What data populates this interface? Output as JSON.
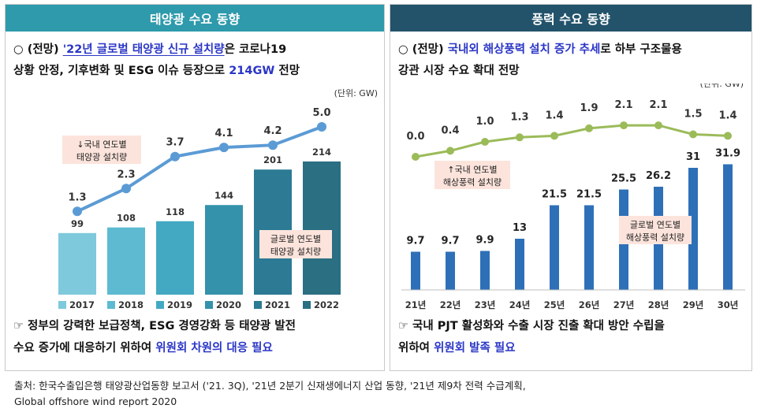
{
  "left": {
    "title": "태양광 수요 동향",
    "headline": {
      "l1_a": "○ (전망) ",
      "l1_b": "'22년 글로벌 태양광 신규 설치량",
      "l1_c": "은 코로나19",
      "l2_a": "상황 안정, 기후변화 및 ESG 이슈 등장으로 ",
      "l2_b": "214GW",
      "l2_c": " 전망"
    },
    "unit": "(단위: GW)",
    "note": {
      "l1": "☞ 정부의 강력한 보급정책, ESG 경영강화 등 태양광 발전",
      "l2_a": "수요 증가에 대응하기 위하여 ",
      "l2_b": "위원회 차원의 대응 필요"
    }
  },
  "right": {
    "title": "풍력 수요 동향",
    "headline": {
      "l1_a": "○ (전망) ",
      "l1_b": "국내외 해상풍력 설치 증가 추세",
      "l1_c": "로 하부 구조물용",
      "l2": "강관 시장 수요 확대 전망"
    },
    "unit": "(단위: GW)",
    "note": {
      "l1": "☞ 국내 PJT 활성화와 수출 시장 진출 확대 방안 수립을",
      "l2_a": "위하여 ",
      "l2_b": "위원회 발족 필요"
    }
  },
  "footer": {
    "l1": "출처: 한국수출입은행 태양광산업동향 보고서 ('21. 3Q), '21년 2분기 신재생에너지 산업 동향, '21년 제9차 전력 수급계획,",
    "l2": "Global offshore wind report 2020"
  },
  "chart_data": [
    {
      "type": "bar",
      "categories": [
        "2017",
        "2018",
        "2019",
        "2020",
        "2021",
        "2022"
      ],
      "series": [
        {
          "name": "글로벌 연도별 태양광 설치량",
          "values": [
            99,
            108,
            118,
            144,
            201,
            214
          ],
          "type": "bar",
          "colors": [
            "#7fc9dc",
            "#5dbad0",
            "#43a9c3",
            "#3592ab",
            "#2c7a93",
            "#2b6f82"
          ]
        },
        {
          "name": "국내 연도별 태양광 설치량",
          "values": [
            1.3,
            2.3,
            3.7,
            4.1,
            4.2,
            5.0
          ],
          "type": "line",
          "color": "#5b9bd5"
        }
      ],
      "legend_boxes": {
        "bar": [
          "글로벌 연도별",
          "태양광 설치량"
        ],
        "line": [
          "↓국내 연도별",
          "태양광 설치량"
        ]
      },
      "legend_position": "bottom"
    },
    {
      "type": "bar",
      "categories": [
        "21년",
        "22년",
        "23년",
        "24년",
        "25년",
        "26년",
        "27년",
        "28년",
        "29년",
        "30년"
      ],
      "series": [
        {
          "name": "글로벌 연도별 해상풍력 설치량",
          "values": [
            9.7,
            9.7,
            9.9,
            13,
            21.5,
            21.5,
            25.5,
            26.2,
            31,
            31.9
          ],
          "type": "bar",
          "color": "#2e70b8"
        },
        {
          "name": "국내 연도별 해상풍력 설치량",
          "values": [
            0.0,
            0.4,
            1.0,
            1.3,
            1.4,
            1.9,
            2.1,
            2.1,
            1.5,
            1.4
          ],
          "type": "line",
          "color": "#9bbb59"
        }
      ],
      "legend_boxes": {
        "bar": [
          "글로벌 연도별",
          "해상풍력 설치량"
        ],
        "line": [
          "↑국내 연도별",
          "해상풍력 설치량"
        ]
      }
    }
  ]
}
